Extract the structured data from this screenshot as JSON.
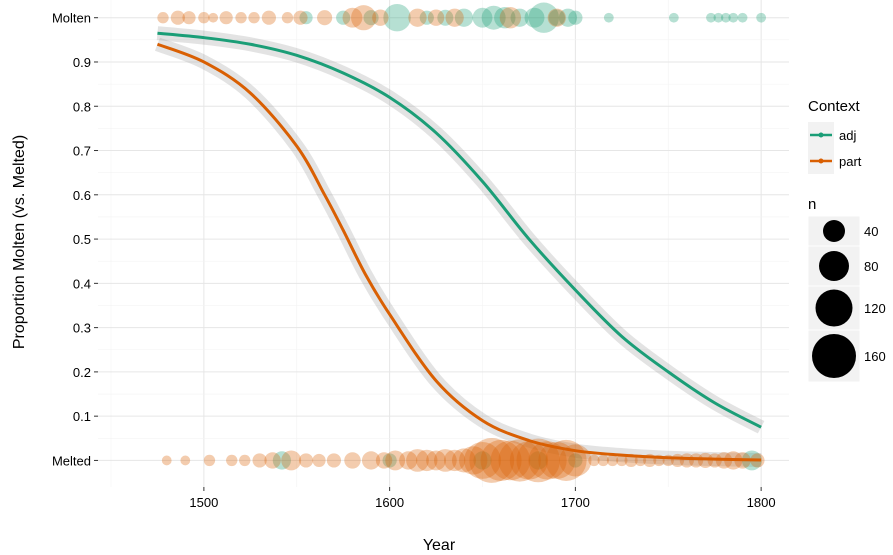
{
  "chart_data": {
    "type": "scatter",
    "title": "",
    "xlabel": "Year",
    "ylabel": "Proportion Molten (vs. Melted)",
    "xlim": [
      1443,
      1815
    ],
    "ylim": [
      -0.06,
      1.04
    ],
    "x_ticks": [
      1500,
      1600,
      1700,
      1800
    ],
    "y_ticks": [
      {
        "value": 0.0,
        "label": "Melted"
      },
      {
        "value": 0.1,
        "label": "0.1"
      },
      {
        "value": 0.2,
        "label": "0.2"
      },
      {
        "value": 0.3,
        "label": "0.3"
      },
      {
        "value": 0.4,
        "label": "0.4"
      },
      {
        "value": 0.5,
        "label": "0.5"
      },
      {
        "value": 0.6,
        "label": "0.6"
      },
      {
        "value": 0.7,
        "label": "0.7"
      },
      {
        "value": 0.8,
        "label": "0.8"
      },
      {
        "value": 0.9,
        "label": "0.9"
      },
      {
        "value": 1.0,
        "label": "Molten"
      }
    ],
    "grid": true,
    "legend": {
      "position": "right",
      "color_title": "Context",
      "color_entries": [
        {
          "label": "adj",
          "color": "#1B9E77"
        },
        {
          "label": "part",
          "color": "#D95F02"
        }
      ],
      "size_title": "n",
      "size_entries": [
        40,
        80,
        120,
        160
      ]
    },
    "series": [
      {
        "name": "adj",
        "color": "#1B9E77",
        "fit": [
          {
            "x": 1475,
            "y": 0.965
          },
          {
            "x": 1500,
            "y": 0.955
          },
          {
            "x": 1525,
            "y": 0.94
          },
          {
            "x": 1550,
            "y": 0.915
          },
          {
            "x": 1575,
            "y": 0.875
          },
          {
            "x": 1600,
            "y": 0.82
          },
          {
            "x": 1625,
            "y": 0.74
          },
          {
            "x": 1650,
            "y": 0.63
          },
          {
            "x": 1675,
            "y": 0.5
          },
          {
            "x": 1700,
            "y": 0.385
          },
          {
            "x": 1725,
            "y": 0.28
          },
          {
            "x": 1750,
            "y": 0.2
          },
          {
            "x": 1775,
            "y": 0.13
          },
          {
            "x": 1800,
            "y": 0.075
          }
        ],
        "points": [
          {
            "x": 1555,
            "y": 1,
            "n": 8
          },
          {
            "x": 1575,
            "y": 1,
            "n": 10
          },
          {
            "x": 1590,
            "y": 1,
            "n": 12
          },
          {
            "x": 1604,
            "y": 1,
            "n": 55
          },
          {
            "x": 1620,
            "y": 1,
            "n": 10
          },
          {
            "x": 1630,
            "y": 1,
            "n": 14
          },
          {
            "x": 1640,
            "y": 1,
            "n": 20
          },
          {
            "x": 1650,
            "y": 1,
            "n": 25
          },
          {
            "x": 1656,
            "y": 1,
            "n": 40
          },
          {
            "x": 1662,
            "y": 1,
            "n": 30
          },
          {
            "x": 1670,
            "y": 1,
            "n": 20
          },
          {
            "x": 1678,
            "y": 1,
            "n": 25
          },
          {
            "x": 1683,
            "y": 1,
            "n": 70
          },
          {
            "x": 1690,
            "y": 1,
            "n": 15
          },
          {
            "x": 1696,
            "y": 1,
            "n": 20
          },
          {
            "x": 1700,
            "y": 1,
            "n": 10
          },
          {
            "x": 1718,
            "y": 1,
            "n": 3
          },
          {
            "x": 1753,
            "y": 1,
            "n": 3
          },
          {
            "x": 1773,
            "y": 1,
            "n": 3
          },
          {
            "x": 1777,
            "y": 1,
            "n": 3
          },
          {
            "x": 1781,
            "y": 1,
            "n": 3
          },
          {
            "x": 1785,
            "y": 1,
            "n": 3
          },
          {
            "x": 1790,
            "y": 1,
            "n": 3
          },
          {
            "x": 1800,
            "y": 1,
            "n": 3
          },
          {
            "x": 1542,
            "y": 0,
            "n": 20
          },
          {
            "x": 1600,
            "y": 0,
            "n": 10
          },
          {
            "x": 1650,
            "y": 0,
            "n": 20
          },
          {
            "x": 1680,
            "y": 0,
            "n": 20
          },
          {
            "x": 1700,
            "y": 0,
            "n": 10
          },
          {
            "x": 1795,
            "y": 0,
            "n": 25
          }
        ]
      },
      {
        "name": "part",
        "color": "#D95F02",
        "fit": [
          {
            "x": 1475,
            "y": 0.94
          },
          {
            "x": 1500,
            "y": 0.9
          },
          {
            "x": 1525,
            "y": 0.83
          },
          {
            "x": 1550,
            "y": 0.71
          },
          {
            "x": 1565,
            "y": 0.6
          },
          {
            "x": 1575,
            "y": 0.52
          },
          {
            "x": 1587,
            "y": 0.42
          },
          {
            "x": 1600,
            "y": 0.33
          },
          {
            "x": 1625,
            "y": 0.18
          },
          {
            "x": 1650,
            "y": 0.09
          },
          {
            "x": 1675,
            "y": 0.045
          },
          {
            "x": 1700,
            "y": 0.022
          },
          {
            "x": 1725,
            "y": 0.012
          },
          {
            "x": 1750,
            "y": 0.006
          },
          {
            "x": 1775,
            "y": 0.003
          },
          {
            "x": 1800,
            "y": 0.001
          }
        ],
        "points": [
          {
            "x": 1478,
            "y": 1,
            "n": 5
          },
          {
            "x": 1486,
            "y": 1,
            "n": 10
          },
          {
            "x": 1492,
            "y": 1,
            "n": 8
          },
          {
            "x": 1500,
            "y": 1,
            "n": 5
          },
          {
            "x": 1505,
            "y": 1,
            "n": 3
          },
          {
            "x": 1512,
            "y": 1,
            "n": 8
          },
          {
            "x": 1520,
            "y": 1,
            "n": 5
          },
          {
            "x": 1527,
            "y": 1,
            "n": 5
          },
          {
            "x": 1535,
            "y": 1,
            "n": 10
          },
          {
            "x": 1545,
            "y": 1,
            "n": 5
          },
          {
            "x": 1552,
            "y": 1,
            "n": 10
          },
          {
            "x": 1565,
            "y": 1,
            "n": 12
          },
          {
            "x": 1580,
            "y": 1,
            "n": 25
          },
          {
            "x": 1586,
            "y": 1,
            "n": 45
          },
          {
            "x": 1595,
            "y": 1,
            "n": 15
          },
          {
            "x": 1615,
            "y": 1,
            "n": 20
          },
          {
            "x": 1625,
            "y": 1,
            "n": 15
          },
          {
            "x": 1635,
            "y": 1,
            "n": 20
          },
          {
            "x": 1665,
            "y": 1,
            "n": 30
          },
          {
            "x": 1690,
            "y": 1,
            "n": 20
          },
          {
            "x": 1480,
            "y": 0,
            "n": 3
          },
          {
            "x": 1490,
            "y": 0,
            "n": 3
          },
          {
            "x": 1503,
            "y": 0,
            "n": 5
          },
          {
            "x": 1515,
            "y": 0,
            "n": 5
          },
          {
            "x": 1522,
            "y": 0,
            "n": 5
          },
          {
            "x": 1530,
            "y": 0,
            "n": 10
          },
          {
            "x": 1537,
            "y": 0,
            "n": 15
          },
          {
            "x": 1547,
            "y": 0,
            "n": 25
          },
          {
            "x": 1555,
            "y": 0,
            "n": 10
          },
          {
            "x": 1562,
            "y": 0,
            "n": 8
          },
          {
            "x": 1570,
            "y": 0,
            "n": 10
          },
          {
            "x": 1580,
            "y": 0,
            "n": 15
          },
          {
            "x": 1590,
            "y": 0,
            "n": 20
          },
          {
            "x": 1597,
            "y": 0,
            "n": 15
          },
          {
            "x": 1603,
            "y": 0,
            "n": 25
          },
          {
            "x": 1610,
            "y": 0,
            "n": 20
          },
          {
            "x": 1615,
            "y": 0,
            "n": 35
          },
          {
            "x": 1620,
            "y": 0,
            "n": 30
          },
          {
            "x": 1625,
            "y": 0,
            "n": 25
          },
          {
            "x": 1630,
            "y": 0,
            "n": 35
          },
          {
            "x": 1635,
            "y": 0,
            "n": 30
          },
          {
            "x": 1640,
            "y": 0,
            "n": 40
          },
          {
            "x": 1645,
            "y": 0,
            "n": 60
          },
          {
            "x": 1650,
            "y": 0,
            "n": 110
          },
          {
            "x": 1655,
            "y": 0,
            "n": 170
          },
          {
            "x": 1660,
            "y": 0,
            "n": 140
          },
          {
            "x": 1665,
            "y": 0,
            "n": 130
          },
          {
            "x": 1670,
            "y": 0,
            "n": 150
          },
          {
            "x": 1675,
            "y": 0,
            "n": 120
          },
          {
            "x": 1680,
            "y": 0,
            "n": 160
          },
          {
            "x": 1685,
            "y": 0,
            "n": 120
          },
          {
            "x": 1690,
            "y": 0,
            "n": 110
          },
          {
            "x": 1695,
            "y": 0,
            "n": 140
          },
          {
            "x": 1700,
            "y": 0,
            "n": 80
          },
          {
            "x": 1710,
            "y": 0,
            "n": 5
          },
          {
            "x": 1715,
            "y": 0,
            "n": 5
          },
          {
            "x": 1720,
            "y": 0,
            "n": 5
          },
          {
            "x": 1725,
            "y": 0,
            "n": 5
          },
          {
            "x": 1730,
            "y": 0,
            "n": 8
          },
          {
            "x": 1735,
            "y": 0,
            "n": 5
          },
          {
            "x": 1740,
            "y": 0,
            "n": 8
          },
          {
            "x": 1745,
            "y": 0,
            "n": 5
          },
          {
            "x": 1750,
            "y": 0,
            "n": 5
          },
          {
            "x": 1755,
            "y": 0,
            "n": 8
          },
          {
            "x": 1760,
            "y": 0,
            "n": 10
          },
          {
            "x": 1765,
            "y": 0,
            "n": 10
          },
          {
            "x": 1770,
            "y": 0,
            "n": 12
          },
          {
            "x": 1775,
            "y": 0,
            "n": 10
          },
          {
            "x": 1780,
            "y": 0,
            "n": 15
          },
          {
            "x": 1785,
            "y": 0,
            "n": 20
          },
          {
            "x": 1790,
            "y": 0,
            "n": 15
          },
          {
            "x": 1798,
            "y": 0,
            "n": 10
          }
        ]
      }
    ]
  }
}
